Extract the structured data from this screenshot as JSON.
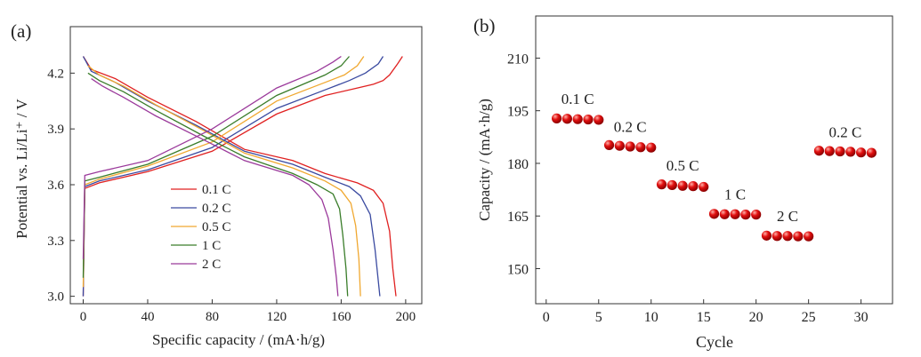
{
  "chart_data": [
    {
      "panel_label": "(a)",
      "type": "line",
      "xlabel": "Specific capacity / (mA·h/g)",
      "ylabel": "Potential vs. Li/Li⁺ / V",
      "xlim": [
        -8,
        210
      ],
      "ylim": [
        2.96,
        4.45
      ],
      "xticks": [
        0,
        40,
        80,
        120,
        160,
        200
      ],
      "yticks": [
        3.0,
        3.3,
        3.6,
        3.9,
        4.2
      ],
      "legend_position": "middle-center",
      "series": [
        {
          "name": "0.1 C",
          "color": "#e02020",
          "charge": [
            [
              0,
              3.0
            ],
            [
              1,
              3.58
            ],
            [
              10,
              3.61
            ],
            [
              40,
              3.67
            ],
            [
              80,
              3.78
            ],
            [
              120,
              3.98
            ],
            [
              150,
              4.08
            ],
            [
              170,
              4.12
            ],
            [
              180,
              4.14
            ],
            [
              186,
              4.16
            ],
            [
              190,
              4.19
            ],
            [
              195,
              4.25
            ],
            [
              198,
              4.29
            ]
          ],
          "discharge": [
            [
              0,
              4.29
            ],
            [
              5,
              4.22
            ],
            [
              20,
              4.17
            ],
            [
              40,
              4.07
            ],
            [
              70,
              3.94
            ],
            [
              100,
              3.79
            ],
            [
              130,
              3.73
            ],
            [
              150,
              3.66
            ],
            [
              170,
              3.61
            ],
            [
              180,
              3.57
            ],
            [
              186,
              3.5
            ],
            [
              190,
              3.35
            ],
            [
              192,
              3.15
            ],
            [
              194,
              3.0
            ]
          ]
        },
        {
          "name": "0.2 C",
          "color": "#3a4aa0",
          "charge": [
            [
              0,
              3.0
            ],
            [
              1,
              3.59
            ],
            [
              10,
              3.62
            ],
            [
              40,
              3.68
            ],
            [
              80,
              3.8
            ],
            [
              120,
              4.01
            ],
            [
              150,
              4.11
            ],
            [
              165,
              4.16
            ],
            [
              175,
              4.2
            ],
            [
              183,
              4.25
            ],
            [
              186,
              4.29
            ]
          ],
          "discharge": [
            [
              0,
              4.29
            ],
            [
              5,
              4.21
            ],
            [
              20,
              4.15
            ],
            [
              40,
              4.05
            ],
            [
              70,
              3.92
            ],
            [
              100,
              3.78
            ],
            [
              130,
              3.71
            ],
            [
              150,
              3.64
            ],
            [
              165,
              3.59
            ],
            [
              172,
              3.54
            ],
            [
              178,
              3.44
            ],
            [
              181,
              3.25
            ],
            [
              184,
              3.0
            ]
          ]
        },
        {
          "name": "0.5 C",
          "color": "#f0a830",
          "charge": [
            [
              0,
              3.05
            ],
            [
              1,
              3.6
            ],
            [
              10,
              3.63
            ],
            [
              40,
              3.7
            ],
            [
              80,
              3.83
            ],
            [
              120,
              4.05
            ],
            [
              150,
              4.15
            ],
            [
              162,
              4.19
            ],
            [
              170,
              4.24
            ],
            [
              174,
              4.29
            ]
          ],
          "discharge": [
            [
              3,
              4.24
            ],
            [
              10,
              4.19
            ],
            [
              25,
              4.13
            ],
            [
              45,
              4.03
            ],
            [
              75,
              3.89
            ],
            [
              100,
              3.77
            ],
            [
              130,
              3.69
            ],
            [
              150,
              3.62
            ],
            [
              160,
              3.57
            ],
            [
              166,
              3.5
            ],
            [
              169,
              3.38
            ],
            [
              171,
              3.2
            ],
            [
              172,
              3.0
            ]
          ]
        },
        {
          "name": "1 C",
          "color": "#3a7d2a",
          "charge": [
            [
              0,
              3.1
            ],
            [
              1,
              3.62
            ],
            [
              10,
              3.64
            ],
            [
              40,
              3.71
            ],
            [
              80,
              3.86
            ],
            [
              120,
              4.08
            ],
            [
              150,
              4.19
            ],
            [
              160,
              4.24
            ],
            [
              165,
              4.29
            ]
          ],
          "discharge": [
            [
              3,
              4.2
            ],
            [
              10,
              4.16
            ],
            [
              25,
              4.1
            ],
            [
              45,
              4.0
            ],
            [
              75,
              3.86
            ],
            [
              100,
              3.75
            ],
            [
              130,
              3.66
            ],
            [
              145,
              3.6
            ],
            [
              155,
              3.55
            ],
            [
              159,
              3.47
            ],
            [
              161,
              3.33
            ],
            [
              163,
              3.15
            ],
            [
              164,
              3.0
            ]
          ]
        },
        {
          "name": "2 C",
          "color": "#9b3a9b",
          "charge": [
            [
              0,
              3.2
            ],
            [
              1,
              3.65
            ],
            [
              10,
              3.67
            ],
            [
              40,
              3.73
            ],
            [
              80,
              3.9
            ],
            [
              120,
              4.12
            ],
            [
              145,
              4.21
            ],
            [
              155,
              4.26
            ],
            [
              160,
              4.29
            ]
          ],
          "discharge": [
            [
              5,
              4.17
            ],
            [
              12,
              4.13
            ],
            [
              25,
              4.07
            ],
            [
              45,
              3.97
            ],
            [
              75,
              3.84
            ],
            [
              100,
              3.73
            ],
            [
              130,
              3.65
            ],
            [
              140,
              3.6
            ],
            [
              148,
              3.52
            ],
            [
              152,
              3.42
            ],
            [
              155,
              3.25
            ],
            [
              157,
              3.1
            ],
            [
              158,
              3.0
            ]
          ]
        }
      ]
    },
    {
      "panel_label": "(b)",
      "type": "scatter",
      "xlabel": "Cycle",
      "ylabel": "Capacity / (mA·h/g)",
      "xlim": [
        -1,
        33
      ],
      "ylim": [
        140,
        222
      ],
      "xticks": [
        0,
        5,
        10,
        15,
        20,
        25,
        30
      ],
      "yticks": [
        150,
        165,
        180,
        195,
        210
      ],
      "marker_color": "#e21010",
      "points": [
        [
          1,
          192.8
        ],
        [
          2,
          192.7
        ],
        [
          3,
          192.6
        ],
        [
          4,
          192.5
        ],
        [
          5,
          192.4
        ],
        [
          6,
          185.2
        ],
        [
          7,
          185.0
        ],
        [
          8,
          184.8
        ],
        [
          9,
          184.6
        ],
        [
          10,
          184.5
        ],
        [
          11,
          174.0
        ],
        [
          12,
          173.8
        ],
        [
          13,
          173.6
        ],
        [
          14,
          173.5
        ],
        [
          15,
          173.3
        ],
        [
          16,
          165.6
        ],
        [
          17,
          165.5
        ],
        [
          18,
          165.5
        ],
        [
          19,
          165.4
        ],
        [
          20,
          165.4
        ],
        [
          21,
          159.4
        ],
        [
          22,
          159.3
        ],
        [
          23,
          159.3
        ],
        [
          24,
          159.2
        ],
        [
          25,
          159.2
        ],
        [
          26,
          183.6
        ],
        [
          27,
          183.5
        ],
        [
          28,
          183.4
        ],
        [
          29,
          183.3
        ],
        [
          30,
          183.1
        ],
        [
          31,
          183.0
        ]
      ],
      "annotations": [
        {
          "text": "0.1 C",
          "x": 3,
          "y": 197
        },
        {
          "text": "0.2 C",
          "x": 8,
          "y": 189
        },
        {
          "text": "0.5 C",
          "x": 13,
          "y": 178
        },
        {
          "text": "1 C",
          "x": 18,
          "y": 169.8
        },
        {
          "text": "2 C",
          "x": 23,
          "y": 163.6
        },
        {
          "text": "0.2 C",
          "x": 28.5,
          "y": 187.5
        }
      ]
    }
  ]
}
